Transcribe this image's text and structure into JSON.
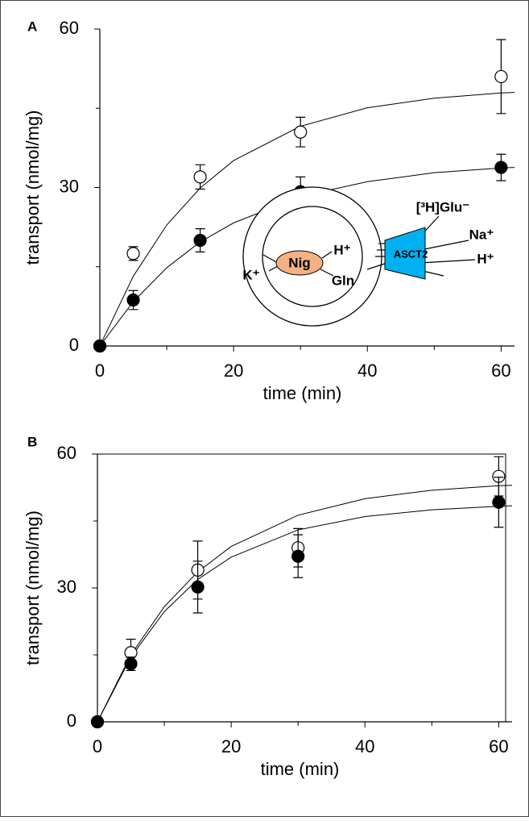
{
  "chart_data": [
    {
      "type": "scatter",
      "label": "A",
      "xlabel": "time (min)",
      "ylabel": "transport (nmol/mg)",
      "xlim": [
        0,
        62
      ],
      "xticks": [
        0,
        20,
        40,
        60
      ],
      "xminor": [
        10,
        30,
        50
      ],
      "ylim": [
        0,
        60
      ],
      "yticks": [
        0,
        30,
        60
      ],
      "yminor": [
        15,
        45
      ],
      "series": [
        {
          "marker": "open",
          "color": "#000000",
          "x": [
            0,
            5,
            15,
            30,
            60
          ],
          "values": [
            0,
            17.5,
            32,
            40.5,
            51
          ],
          "errors": [
            0,
            1.3,
            2.3,
            2.8,
            7
          ]
        },
        {
          "marker": "filled",
          "color": "#000000",
          "x": [
            0,
            5,
            15,
            30,
            60
          ],
          "values": [
            0,
            8.7,
            20,
            29.2,
            33.8
          ],
          "errors": [
            0,
            1.8,
            2.2,
            2.8,
            2.5
          ]
        },
        {
          "marker": "fit",
          "color": "#000000",
          "x": [
            0,
            5,
            10,
            15,
            20,
            30,
            40,
            50,
            60,
            62
          ],
          "values": [
            0,
            13.2,
            22.9,
            29.9,
            35.1,
            41.6,
            45.1,
            46.9,
            47.9,
            48
          ]
        },
        {
          "marker": "fit",
          "color": "#000000",
          "x": [
            0,
            5,
            10,
            15,
            20,
            30,
            40,
            50,
            60,
            62
          ],
          "values": [
            0,
            8.4,
            14.8,
            19.7,
            23.3,
            28.3,
            31.1,
            32.8,
            33.7,
            33.8
          ]
        }
      ],
      "inset": {
        "nig": "Nig",
        "k": "K⁺",
        "h_in": "H⁺",
        "gln": "Gln",
        "asct2": "ASCT2",
        "glu": "[³H]Glu⁻",
        "na": "Na⁺",
        "h_out": "H⁺"
      }
    },
    {
      "type": "scatter",
      "label": "B",
      "xlabel": "time (min)",
      "ylabel": "transport (nmol/mg)",
      "xlim": [
        0,
        62
      ],
      "xticks": [
        0,
        20,
        40,
        60
      ],
      "xminor": [
        10,
        30,
        50
      ],
      "ylim": [
        0,
        60
      ],
      "yticks": [
        0,
        30,
        60
      ],
      "yminor": [
        15,
        45
      ],
      "series": [
        {
          "marker": "open",
          "color": "#000000",
          "x": [
            0,
            5,
            15,
            30,
            60
          ],
          "values": [
            0,
            15.5,
            34,
            39,
            55
          ],
          "errors": [
            0,
            3,
            6.5,
            4.3,
            4.4
          ]
        },
        {
          "marker": "filled",
          "color": "#000000",
          "x": [
            0,
            5,
            15,
            30,
            60
          ],
          "values": [
            0,
            13,
            30.2,
            37.1,
            49.2
          ],
          "errors": [
            0,
            1.5,
            5.8,
            4.8,
            5.6
          ]
        },
        {
          "marker": "fit",
          "color": "#000000",
          "x": [
            0,
            5,
            10,
            15,
            20,
            30,
            40,
            50,
            60,
            62
          ],
          "values": [
            0,
            15,
            25.8,
            33.6,
            39.3,
            46.3,
            50,
            51.9,
            52.9,
            53
          ]
        },
        {
          "marker": "fit",
          "color": "#000000",
          "x": [
            0,
            5,
            10,
            15,
            20,
            30,
            40,
            50,
            60,
            62
          ],
          "values": [
            0,
            14.5,
            24.7,
            31.9,
            36.9,
            43,
            46,
            47.5,
            48.3,
            48.4
          ]
        }
      ]
    }
  ]
}
